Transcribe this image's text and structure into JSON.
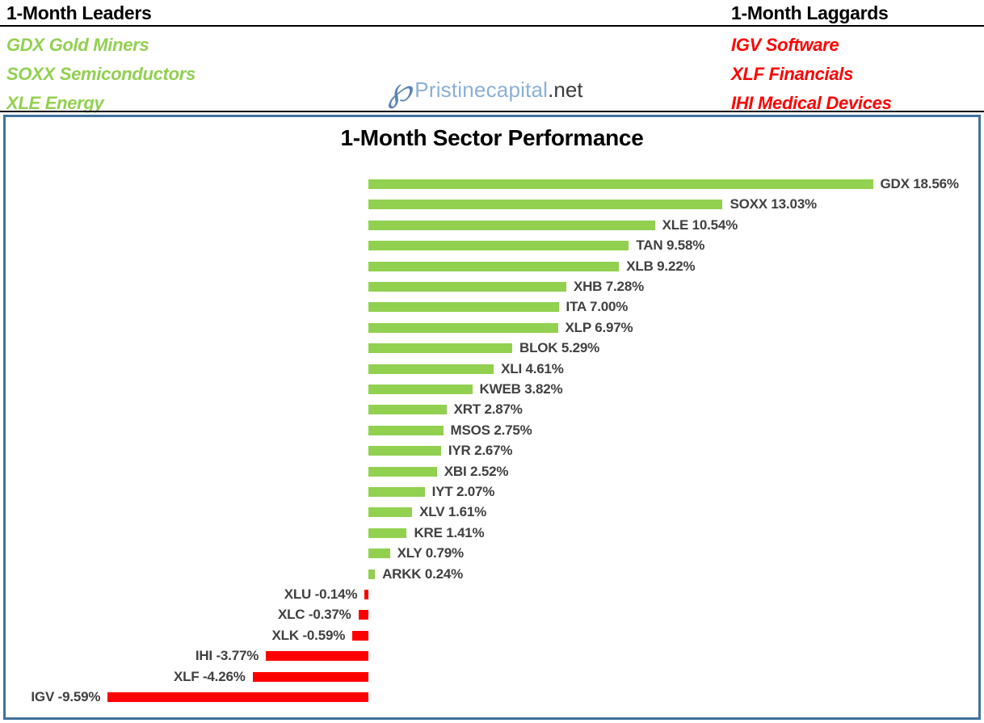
{
  "header": {
    "leaders": {
      "title": "1-Month Leaders",
      "items": [
        "GDX Gold Miners",
        "SOXX Semiconductors",
        "XLE Energy"
      ]
    },
    "laggards": {
      "title": "1-Month Laggards",
      "items": [
        "IGV Software",
        "XLF Financials",
        "IHI Medical Devices"
      ]
    },
    "logo": {
      "monogram": "℘",
      "brand": "Pristinecapital",
      "tld": ".net"
    }
  },
  "colors": {
    "positive_bar": "#92d050",
    "negative_bar": "#ff0000",
    "leaders_text": "#92d050",
    "laggards_text": "#ff0000",
    "chart_border": "#41719c",
    "bar_label_text": "#404040"
  },
  "chart_data": {
    "type": "bar",
    "orientation": "horizontal",
    "title": "1-Month Sector Performance",
    "xlabel": "",
    "ylabel": "",
    "grid": false,
    "xlim": [
      -10,
      19
    ],
    "categories": [
      "GDX",
      "SOXX",
      "XLE",
      "TAN",
      "XLB",
      "XHB",
      "ITA",
      "XLP",
      "BLOK",
      "XLI",
      "KWEB",
      "XRT",
      "MSOS",
      "IYR",
      "XBI",
      "IYT",
      "XLV",
      "KRE",
      "XLY",
      "ARKK",
      "XLU",
      "XLC",
      "XLK",
      "IHI",
      "XLF",
      "IGV"
    ],
    "values": [
      18.56,
      13.03,
      10.54,
      9.58,
      9.22,
      7.28,
      7.0,
      6.97,
      5.29,
      4.61,
      3.82,
      2.87,
      2.75,
      2.67,
      2.52,
      2.07,
      1.61,
      1.41,
      0.79,
      0.24,
      -0.14,
      -0.37,
      -0.59,
      -3.77,
      -4.26,
      -9.59
    ],
    "labels": [
      "GDX 18.56%",
      "SOXX 13.03%",
      "XLE 10.54%",
      "TAN 9.58%",
      "XLB 9.22%",
      "XHB 7.28%",
      "ITA 7.00%",
      "XLP 6.97%",
      "BLOK 5.29%",
      "XLI 4.61%",
      "KWEB 3.82%",
      "XRT 2.87%",
      "MSOS 2.75%",
      "IYR 2.67%",
      "XBI 2.52%",
      "IYT 2.07%",
      "XLV 1.61%",
      "KRE 1.41%",
      "XLY 0.79%",
      "ARKK 0.24%",
      "XLU -0.14%",
      "XLC -0.37%",
      "XLK -0.59%",
      "IHI -3.77%",
      "XLF -4.26%",
      "IGV -9.59%"
    ]
  }
}
